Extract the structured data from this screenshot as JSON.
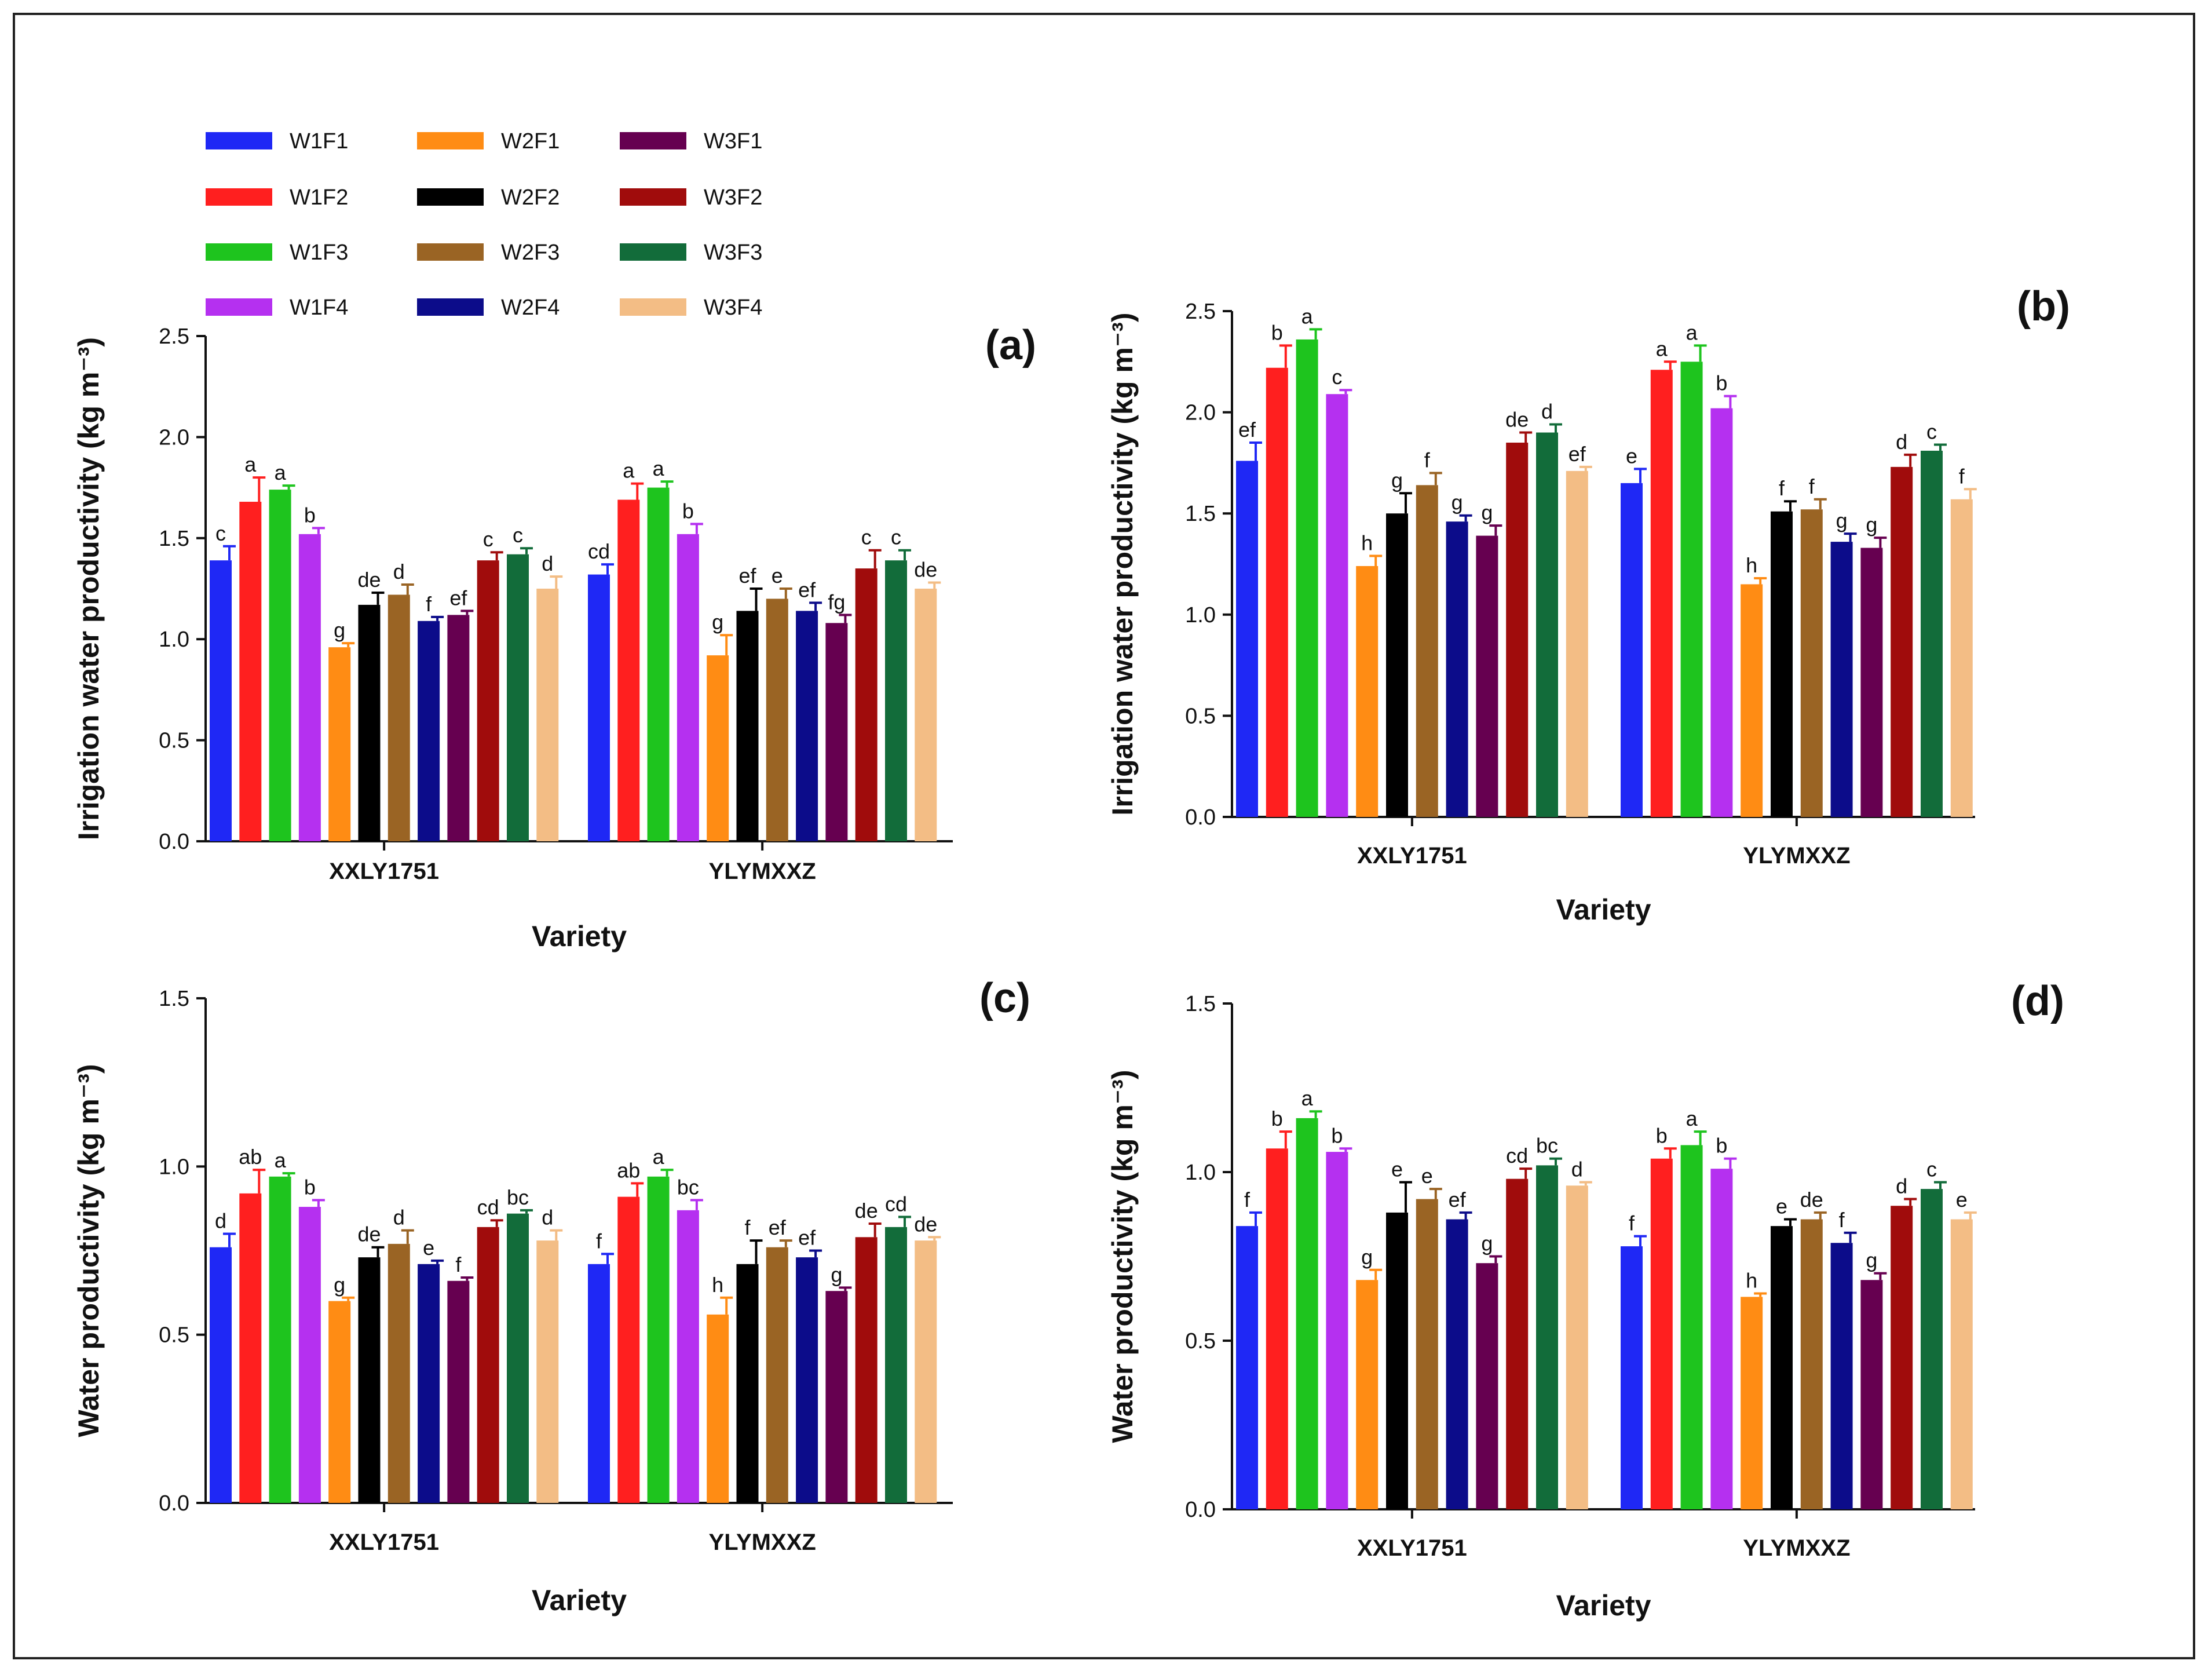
{
  "legend": [
    {
      "name": "W1F1",
      "color": "#1f28f5"
    },
    {
      "name": "W1F2",
      "color": "#ff1f1f"
    },
    {
      "name": "W1F3",
      "color": "#1ec41e"
    },
    {
      "name": "W1F4",
      "color": "#b530f0"
    },
    {
      "name": "W2F1",
      "color": "#ff8c14"
    },
    {
      "name": "W2F2",
      "color": "#000000"
    },
    {
      "name": "W2F3",
      "color": "#9a6424"
    },
    {
      "name": "W2F4",
      "color": "#0c0c8a"
    },
    {
      "name": "W3F1",
      "color": "#660050"
    },
    {
      "name": "W3F2",
      "color": "#a00c0c"
    },
    {
      "name": "W3F3",
      "color": "#126c3a"
    },
    {
      "name": "W3F4",
      "color": "#f3bd85"
    }
  ],
  "chart_data": [
    {
      "panel": "(a)",
      "type": "bar",
      "xlabel": "Variety",
      "ylabel": "Irrigation water productivity (kg m⁻³)",
      "ylim": [
        0,
        2.5
      ],
      "yticks": [
        "0.0",
        "0.5",
        "1.0",
        "1.5",
        "2.0",
        "2.5"
      ],
      "categories": [
        "XXLY1751",
        "YLYMXXZ"
      ],
      "groups": [
        {
          "values": [
            1.39,
            1.68,
            1.74,
            1.52,
            0.96,
            1.17,
            1.22,
            1.09,
            1.12,
            1.39,
            1.42,
            1.25
          ],
          "errors": [
            0.07,
            0.12,
            0.02,
            0.03,
            0.02,
            0.06,
            0.05,
            0.02,
            0.02,
            0.04,
            0.03,
            0.06
          ],
          "letters": [
            "c",
            "a",
            "a",
            "b",
            "g",
            "de",
            "d",
            "f",
            "ef",
            "c",
            "c",
            "d"
          ]
        },
        {
          "values": [
            1.32,
            1.69,
            1.75,
            1.52,
            0.92,
            1.14,
            1.2,
            1.14,
            1.08,
            1.35,
            1.39,
            1.25
          ],
          "errors": [
            0.05,
            0.08,
            0.03,
            0.05,
            0.1,
            0.11,
            0.05,
            0.04,
            0.04,
            0.09,
            0.05,
            0.03
          ],
          "letters": [
            "cd",
            "a",
            "a",
            "b",
            "g",
            "ef",
            "e",
            "ef",
            "fg",
            "c",
            "c",
            "de"
          ]
        }
      ]
    },
    {
      "panel": "(b)",
      "type": "bar",
      "xlabel": "Variety",
      "ylabel": "Irrigation water productivity (kg m⁻³)",
      "ylim": [
        0,
        2.5
      ],
      "yticks": [
        "0.0",
        "0.5",
        "1.0",
        "1.5",
        "2.0",
        "2.5"
      ],
      "categories": [
        "XXLY1751",
        "YLYMXXZ"
      ],
      "groups": [
        {
          "values": [
            1.76,
            2.22,
            2.36,
            2.09,
            1.24,
            1.5,
            1.64,
            1.46,
            1.39,
            1.85,
            1.9,
            1.71
          ],
          "errors": [
            0.09,
            0.11,
            0.05,
            0.02,
            0.05,
            0.1,
            0.06,
            0.03,
            0.05,
            0.05,
            0.04,
            0.02
          ],
          "letters": [
            "ef",
            "b",
            "a",
            "c",
            "h",
            "g",
            "f",
            "g",
            "g",
            "de",
            "d",
            "ef"
          ]
        },
        {
          "values": [
            1.65,
            2.21,
            2.25,
            2.02,
            1.15,
            1.51,
            1.52,
            1.36,
            1.33,
            1.73,
            1.81,
            1.57
          ],
          "errors": [
            0.07,
            0.04,
            0.08,
            0.06,
            0.03,
            0.05,
            0.05,
            0.04,
            0.05,
            0.06,
            0.03,
            0.05
          ],
          "letters": [
            "e",
            "a",
            "a",
            "b",
            "h",
            "f",
            "f",
            "g",
            "g",
            "d",
            "c",
            "f"
          ]
        }
      ]
    },
    {
      "panel": "(c)",
      "type": "bar",
      "xlabel": "Variety",
      "ylabel": "Water productivity (kg m⁻³)",
      "ylim": [
        0,
        1.5
      ],
      "yticks": [
        "0.0",
        "0.5",
        "1.0",
        "1.5"
      ],
      "categories": [
        "XXLY1751",
        "YLYMXXZ"
      ],
      "groups": [
        {
          "values": [
            0.76,
            0.92,
            0.97,
            0.88,
            0.6,
            0.73,
            0.77,
            0.71,
            0.66,
            0.82,
            0.86,
            0.78
          ],
          "errors": [
            0.04,
            0.07,
            0.01,
            0.02,
            0.01,
            0.03,
            0.04,
            0.01,
            0.01,
            0.02,
            0.01,
            0.03
          ],
          "letters": [
            "d",
            "ab",
            "a",
            "b",
            "g",
            "de",
            "d",
            "e",
            "f",
            "cd",
            "bc",
            "d"
          ]
        },
        {
          "values": [
            0.71,
            0.91,
            0.97,
            0.87,
            0.56,
            0.71,
            0.76,
            0.73,
            0.63,
            0.79,
            0.82,
            0.78
          ],
          "errors": [
            0.03,
            0.04,
            0.02,
            0.03,
            0.05,
            0.07,
            0.02,
            0.02,
            0.01,
            0.04,
            0.03,
            0.01
          ],
          "letters": [
            "f",
            "ab",
            "a",
            "bc",
            "h",
            "f",
            "ef",
            "ef",
            "g",
            "de",
            "cd",
            "de"
          ]
        }
      ]
    },
    {
      "panel": "(d)",
      "type": "bar",
      "xlabel": "Variety",
      "ylabel": "Water productivity (kg m⁻³)",
      "ylim": [
        0,
        1.5
      ],
      "yticks": [
        "0.0",
        "0.5",
        "1.0",
        "1.5"
      ],
      "categories": [
        "XXLY1751",
        "YLYMXXZ"
      ],
      "groups": [
        {
          "values": [
            0.84,
            1.07,
            1.16,
            1.06,
            0.68,
            0.88,
            0.92,
            0.86,
            0.73,
            0.98,
            1.02,
            0.96
          ],
          "errors": [
            0.04,
            0.05,
            0.02,
            0.01,
            0.03,
            0.09,
            0.03,
            0.02,
            0.02,
            0.03,
            0.02,
            0.01
          ],
          "letters": [
            "f",
            "b",
            "a",
            "b",
            "g",
            "e",
            "e",
            "ef",
            "g",
            "cd",
            "bc",
            "d"
          ]
        },
        {
          "values": [
            0.78,
            1.04,
            1.08,
            1.01,
            0.63,
            0.84,
            0.86,
            0.79,
            0.68,
            0.9,
            0.95,
            0.86
          ],
          "errors": [
            0.03,
            0.03,
            0.04,
            0.03,
            0.01,
            0.02,
            0.02,
            0.03,
            0.02,
            0.02,
            0.02,
            0.02
          ],
          "letters": [
            "f",
            "b",
            "a",
            "b",
            "h",
            "e",
            "de",
            "f",
            "g",
            "d",
            "c",
            "e"
          ]
        }
      ]
    }
  ]
}
